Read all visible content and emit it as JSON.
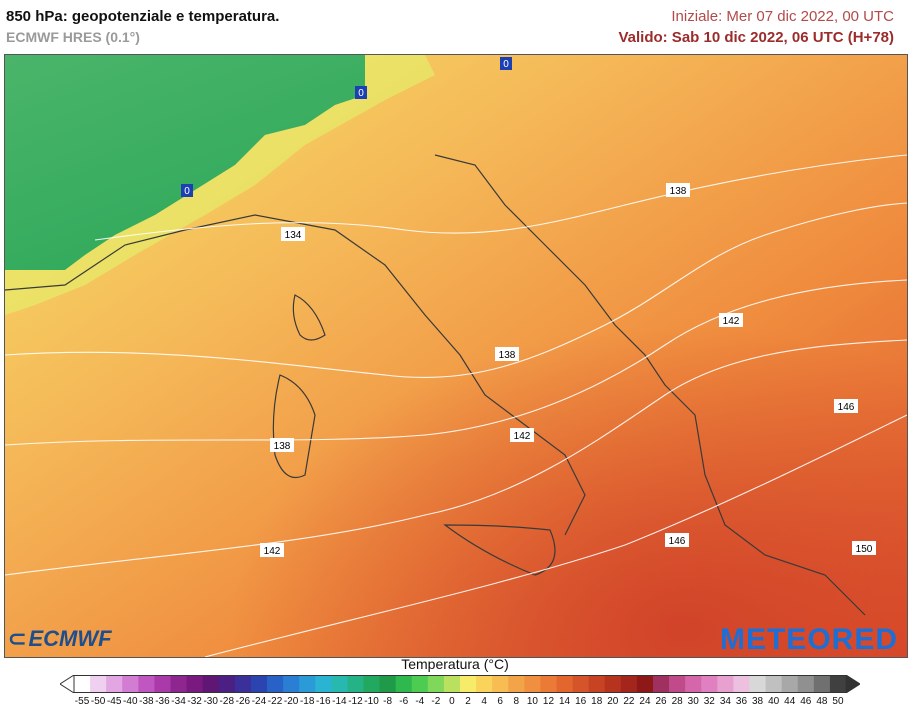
{
  "header": {
    "title": "850 hPa: geopotenziale e temperatura.",
    "model": "ECMWF HRES (0.1°)",
    "init": "Iniziale: Mer 07 dic 2022, 00 UTC",
    "valid": "Valido: Sab 10 dic 2022, 06 UTC (H+78)"
  },
  "map": {
    "isoline_labels": [
      "134",
      "138",
      "138",
      "138",
      "142",
      "142",
      "142",
      "146",
      "146",
      "150"
    ],
    "isotherm_labels": [
      "0",
      "0",
      "0"
    ],
    "colors": {
      "cold": "#1fa84d",
      "mild": "#f3e06a",
      "warm": "#f1a548",
      "hot": "#e35f2f"
    }
  },
  "legend": {
    "title": "Temperatura (°C)",
    "ticks": [
      "-55",
      "-50",
      "-45",
      "-40",
      "-38",
      "-36",
      "-34",
      "-32",
      "-30",
      "-28",
      "-26",
      "-24",
      "-22",
      "-20",
      "-18",
      "-16",
      "-14",
      "-12",
      "-10",
      "-8",
      "-6",
      "-4",
      "-2",
      "0",
      "2",
      "4",
      "6",
      "8",
      "10",
      "12",
      "14",
      "16",
      "18",
      "20",
      "22",
      "24",
      "26",
      "28",
      "30",
      "32",
      "34",
      "36",
      "38",
      "40",
      "44",
      "46",
      "48",
      "50"
    ],
    "colors": [
      "#ffffff",
      "#f0d0f0",
      "#e2a6e2",
      "#d27cd2",
      "#c057c0",
      "#aa3aaa",
      "#8f268f",
      "#7a1a80",
      "#5f1675",
      "#4b1f84",
      "#3b2f9a",
      "#2c44b0",
      "#2962c6",
      "#2a7fd4",
      "#2b9bd8",
      "#2bb3d4",
      "#27b9b0",
      "#24b386",
      "#21a95f",
      "#1f9a48",
      "#2fb84e",
      "#4dcc52",
      "#7fd85a",
      "#b9e15f",
      "#f6ec6a",
      "#f9d35a",
      "#f7bc52",
      "#f4a448",
      "#f08f3f",
      "#eb7a37",
      "#e3662f",
      "#d65429",
      "#c74323",
      "#b6331e",
      "#a3251b",
      "#8e1818",
      "#a03060",
      "#c04a8a",
      "#d566aa",
      "#e080c0",
      "#e8a0d0",
      "#eec0e0",
      "#d8d8d8",
      "#c0c0c0",
      "#a8a8a8",
      "#909090",
      "#707070",
      "#404040"
    ]
  },
  "logos": {
    "left": "ECMWF",
    "right": "METEORED"
  }
}
